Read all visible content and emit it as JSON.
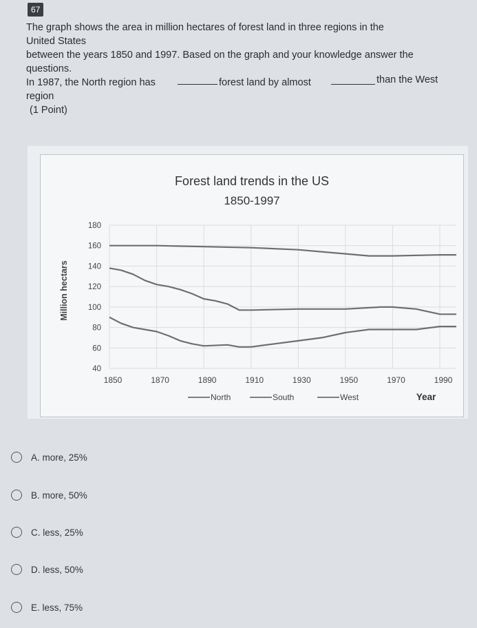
{
  "question": {
    "number": "67",
    "line1": "The graph shows the area in million hectares of forest land in three regions in the",
    "line2": "United States",
    "line3": "between the years 1850 and 1997. Based on the graph and your knowledge answer the",
    "line4": "questions.",
    "fill_part1": "In 1987, the North region has",
    "fill_part2": "forest land by almost",
    "fill_part3": "than the West",
    "line6": "region",
    "points": "(1 Point)"
  },
  "chart_data": {
    "type": "line",
    "title": "Forest land trends in the US",
    "subtitle": "1850-1997",
    "ylabel": "Million hectars",
    "xlabel": "Year",
    "ylim": [
      40,
      180
    ],
    "xlim": [
      1850,
      1997
    ],
    "y_ticks": [
      "180",
      "160",
      "140",
      "120",
      "100",
      "80",
      "60",
      "40"
    ],
    "x_ticks": [
      "1850",
      "1870",
      "1890",
      "1910",
      "1930",
      "1950",
      "1970",
      "1990"
    ],
    "legend": [
      "North",
      "South",
      "West"
    ],
    "grid": true,
    "series": [
      {
        "id": "upper",
        "x": [
          1850,
          1870,
          1890,
          1910,
          1930,
          1950,
          1960,
          1970,
          1990,
          1997
        ],
        "values": [
          160,
          160,
          159,
          158,
          156,
          152,
          150,
          150,
          151,
          151
        ]
      },
      {
        "id": "middle",
        "x": [
          1850,
          1855,
          1860,
          1865,
          1870,
          1875,
          1880,
          1885,
          1890,
          1895,
          1900,
          1905,
          1910,
          1930,
          1950,
          1965,
          1970,
          1980,
          1990,
          1997
        ],
        "values": [
          138,
          136,
          132,
          126,
          122,
          120,
          117,
          113,
          108,
          106,
          103,
          97,
          97,
          98,
          98,
          100,
          100,
          98,
          93,
          93
        ]
      },
      {
        "id": "lower",
        "x": [
          1850,
          1855,
          1860,
          1870,
          1875,
          1880,
          1885,
          1890,
          1900,
          1905,
          1910,
          1920,
          1930,
          1940,
          1950,
          1960,
          1970,
          1980,
          1990,
          1997
        ],
        "values": [
          90,
          84,
          80,
          76,
          72,
          67,
          64,
          62,
          63,
          61,
          61,
          64,
          67,
          70,
          75,
          78,
          78,
          78,
          81,
          81
        ]
      }
    ]
  },
  "options": [
    {
      "label": "A. more, 25%"
    },
    {
      "label": "B. more, 50%"
    },
    {
      "label": "C. less, 25%"
    },
    {
      "label": "D. less, 50%"
    },
    {
      "label": "E. less, 75%"
    }
  ]
}
